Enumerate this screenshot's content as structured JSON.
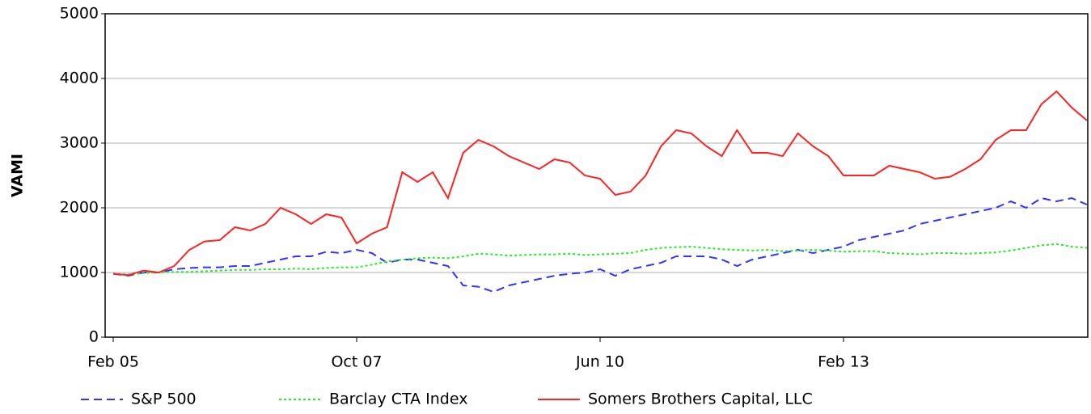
{
  "chart_data": {
    "type": "line",
    "ylabel": "VAMI",
    "categories": [
      "Feb 05",
      null,
      null,
      null,
      null,
      null,
      null,
      null,
      null,
      null,
      null,
      null,
      null,
      null,
      null,
      null,
      "Oct 07",
      null,
      null,
      null,
      null,
      null,
      null,
      null,
      null,
      null,
      null,
      null,
      null,
      null,
      null,
      null,
      "Jun 10",
      null,
      null,
      null,
      null,
      null,
      null,
      null,
      null,
      null,
      null,
      null,
      null,
      null,
      null,
      null,
      "Feb 13",
      null,
      null,
      null,
      null,
      null,
      null,
      null,
      null,
      null,
      null,
      null,
      null,
      null,
      null,
      null,
      null
    ],
    "series": [
      {
        "name": "S&P 500",
        "color": "#3333ff",
        "dash": "dashed",
        "values": [
          980,
          950,
          1000,
          1000,
          1050,
          1070,
          1080,
          1080,
          1100,
          1100,
          1150,
          1200,
          1250,
          1250,
          1320,
          1300,
          1350,
          1300,
          1150,
          1200,
          1200,
          1150,
          1100,
          800,
          780,
          700,
          800,
          850,
          900,
          950,
          980,
          1000,
          1050,
          950,
          1050,
          1100,
          1150,
          1250,
          1250,
          1250,
          1200,
          1100,
          1200,
          1250,
          1300,
          1350,
          1300,
          1350,
          1400,
          1500,
          1550,
          1600,
          1650,
          1750,
          1800,
          1850,
          1900,
          1950,
          2000,
          2100,
          2000,
          2150,
          2100,
          2150,
          2050
        ]
      },
      {
        "name": "Barclay CTA Index",
        "color": "#22ee22",
        "dash": "dotted",
        "values": [
          980,
          970,
          990,
          1000,
          1010,
          1010,
          1020,
          1030,
          1040,
          1040,
          1050,
          1050,
          1060,
          1050,
          1070,
          1080,
          1080,
          1120,
          1170,
          1200,
          1220,
          1230,
          1220,
          1250,
          1290,
          1280,
          1260,
          1270,
          1280,
          1280,
          1290,
          1270,
          1280,
          1290,
          1300,
          1350,
          1380,
          1390,
          1400,
          1380,
          1360,
          1350,
          1340,
          1350,
          1330,
          1340,
          1350,
          1340,
          1320,
          1330,
          1330,
          1300,
          1290,
          1280,
          1300,
          1300,
          1290,
          1300,
          1310,
          1340,
          1380,
          1420,
          1440,
          1400,
          1380
        ]
      },
      {
        "name": "Somers Brothers Capital, LLC",
        "color": "#ff2222",
        "dash": "solid",
        "values": [
          980,
          960,
          1030,
          1000,
          1100,
          1350,
          1480,
          1500,
          1700,
          1650,
          1750,
          2000,
          1900,
          1750,
          1900,
          1850,
          1450,
          1600,
          1700,
          2550,
          2400,
          2550,
          2150,
          2850,
          3050,
          2950,
          2800,
          2700,
          2600,
          2750,
          2700,
          2500,
          2450,
          2200,
          2250,
          2500,
          2950,
          3200,
          3150,
          2950,
          2800,
          3200,
          2850,
          2850,
          2800,
          3150,
          2950,
          2800,
          2500,
          2500,
          2500,
          2650,
          2600,
          2550,
          2450,
          2480,
          2600,
          2750,
          3050,
          3200,
          3200,
          3600,
          3800,
          3550,
          3350
        ]
      }
    ],
    "ylim": [
      0,
      5000
    ],
    "yticks": [
      0,
      1000,
      2000,
      3000,
      4000,
      5000
    ],
    "grid": true
  }
}
